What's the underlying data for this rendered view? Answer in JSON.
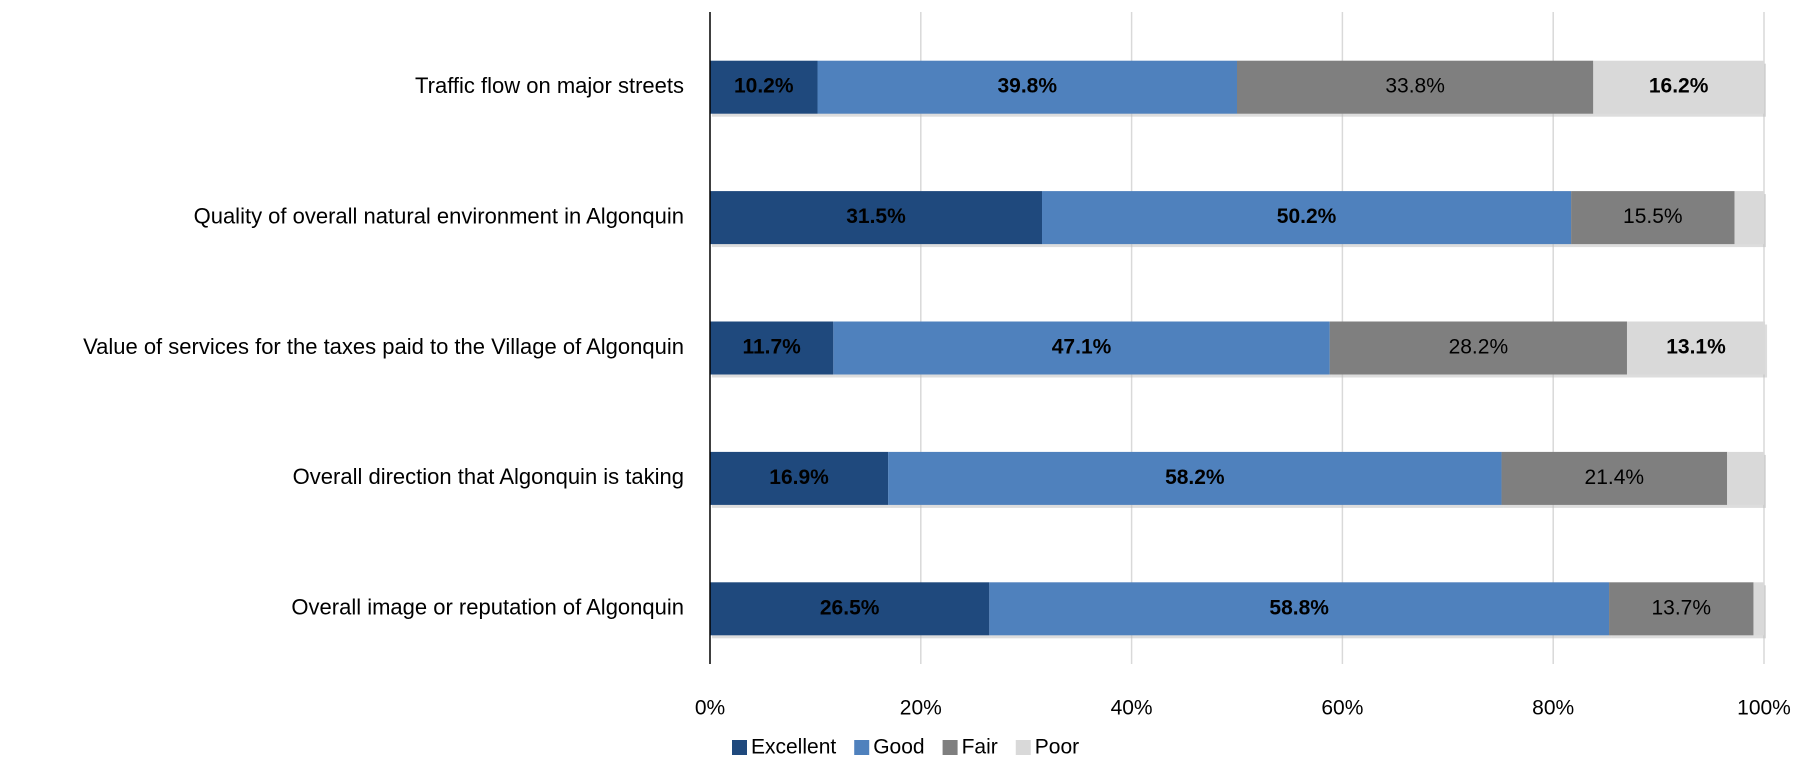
{
  "chart_data": {
    "type": "stacked_barh",
    "categories": [
      "Traffic flow on major streets",
      "Quality of overall natural environment in Algonquin",
      "Value of services for the taxes paid to the Village of Algonquin",
      "Overall direction that Algonquin is taking",
      "Overall image or reputation of Algonquin"
    ],
    "series": [
      {
        "name": "Excellent",
        "color": "#1f497d",
        "values": [
          10.2,
          31.5,
          11.7,
          16.9,
          26.5
        ],
        "value_labels": [
          "10.2%",
          "31.5%",
          "11.7%",
          "16.9%",
          "26.5%"
        ]
      },
      {
        "name": "Good",
        "color": "#4f81bd",
        "values": [
          39.8,
          50.2,
          47.1,
          58.2,
          58.8
        ],
        "value_labels": [
          "39.8%",
          "50.2%",
          "47.1%",
          "58.2%",
          "58.8%"
        ]
      },
      {
        "name": "Fair",
        "color": "#7f7f7f",
        "values": [
          33.8,
          15.5,
          28.2,
          21.4,
          13.7
        ],
        "value_labels": [
          "33.8%",
          "15.5%",
          "28.2%",
          "21.4%",
          "13.7%"
        ]
      },
      {
        "name": "Poor",
        "color": "#d9d9d9",
        "values": [
          16.2,
          2.8,
          13.1,
          3.5,
          1.0
        ],
        "value_labels": [
          "16.2%",
          null,
          "13.1%",
          null,
          null
        ]
      }
    ],
    "xlim": [
      0,
      100
    ],
    "xticks": [
      {
        "value": 0,
        "label": "0%"
      },
      {
        "value": 20,
        "label": "20%"
      },
      {
        "value": 40,
        "label": "40%"
      },
      {
        "value": 60,
        "label": "60%"
      },
      {
        "value": 80,
        "label": "80%"
      },
      {
        "value": 100,
        "label": "100%"
      }
    ],
    "grid": true,
    "legend": "bottom"
  }
}
